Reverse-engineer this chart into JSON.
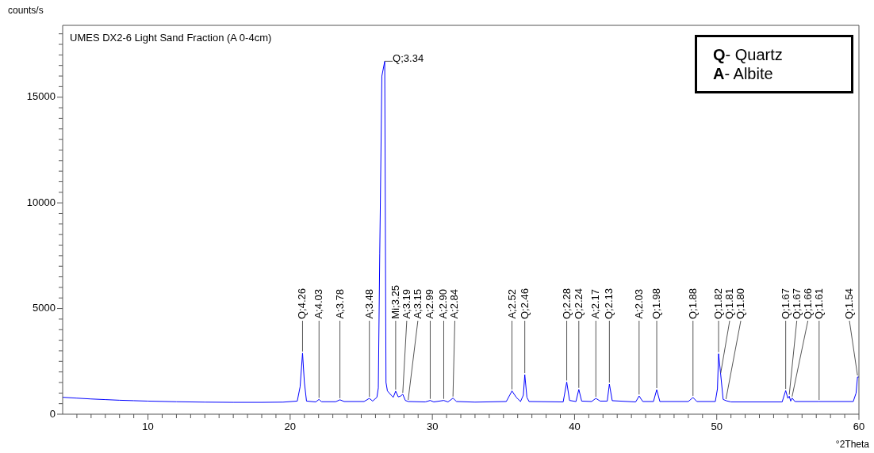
{
  "chart_data": {
    "type": "line",
    "title": "UMES DX2-6 Light Sand Fraction (A 0-4cm)",
    "xlabel": "°2Theta",
    "ylabel": "counts/s",
    "xlim": [
      4,
      60
    ],
    "xticks": [
      {
        "value": 5,
        "label": null
      },
      {
        "value": 6,
        "label": null
      },
      {
        "value": 7,
        "label": null
      },
      {
        "value": 8,
        "label": null
      },
      {
        "value": 9,
        "label": null
      },
      10,
      {
        "value": 11,
        "label": null
      },
      {
        "value": 12,
        "label": null
      },
      {
        "value": 13,
        "label": null
      },
      {
        "value": 14,
        "label": null
      },
      {
        "value": 15,
        "label": null
      },
      {
        "value": 16,
        "label": null
      },
      {
        "value": 17,
        "label": null
      },
      {
        "value": 18,
        "label": null
      },
      {
        "value": 19,
        "label": null
      },
      20,
      {
        "value": 21,
        "label": null
      },
      {
        "value": 22,
        "label": null
      },
      {
        "value": 23,
        "label": null
      },
      {
        "value": 24,
        "label": null
      },
      {
        "value": 25,
        "label": null
      },
      {
        "value": 26,
        "label": null
      },
      {
        "value": 27,
        "label": null
      },
      {
        "value": 28,
        "label": null
      },
      {
        "value": 29,
        "label": null
      },
      30,
      {
        "value": 31,
        "label": null
      },
      {
        "value": 32,
        "label": null
      },
      {
        "value": 33,
        "label": null
      },
      {
        "value": 34,
        "label": null
      },
      {
        "value": 35,
        "label": null
      },
      {
        "value": 36,
        "label": null
      },
      {
        "value": 37,
        "label": null
      },
      {
        "value": 38,
        "label": null
      },
      {
        "value": 39,
        "label": null
      },
      40,
      {
        "value": 41,
        "label": null
      },
      {
        "value": 42,
        "label": null
      },
      {
        "value": 43,
        "label": null
      },
      {
        "value": 44,
        "label": null
      },
      {
        "value": 45,
        "label": null
      },
      {
        "value": 46,
        "label": null
      },
      {
        "value": 47,
        "label": null
      },
      {
        "value": 48,
        "label": null
      },
      {
        "value": 49,
        "label": null
      },
      50,
      {
        "value": 51,
        "label": null
      },
      {
        "value": 52,
        "label": null
      },
      {
        "value": 53,
        "label": null
      },
      {
        "value": 54,
        "label": null
      },
      {
        "value": 55,
        "label": null
      },
      {
        "value": 56,
        "label": null
      },
      {
        "value": 57,
        "label": null
      },
      {
        "value": 58,
        "label": null
      },
      {
        "value": 59,
        "label": null
      },
      60
    ],
    "ylim": [
      0,
      18400
    ],
    "yticks": [
      0,
      {
        "value": 500,
        "label": null
      },
      {
        "value": 1000,
        "label": null
      },
      {
        "value": 1500,
        "label": null
      },
      {
        "value": 2000,
        "label": null
      },
      {
        "value": 2500,
        "label": null
      },
      {
        "value": 3000,
        "label": null
      },
      {
        "value": 3500,
        "label": null
      },
      {
        "value": 4000,
        "label": null
      },
      {
        "value": 4500,
        "label": null
      },
      5000,
      {
        "value": 5500,
        "label": null
      },
      {
        "value": 6000,
        "label": null
      },
      {
        "value": 6500,
        "label": null
      },
      {
        "value": 7000,
        "label": null
      },
      {
        "value": 7500,
        "label": null
      },
      {
        "value": 8000,
        "label": null
      },
      {
        "value": 8500,
        "label": null
      },
      {
        "value": 9000,
        "label": null
      },
      {
        "value": 9500,
        "label": null
      },
      10000,
      {
        "value": 10500,
        "label": null
      },
      {
        "value": 11000,
        "label": null
      },
      {
        "value": 11500,
        "label": null
      },
      {
        "value": 12000,
        "label": null
      },
      {
        "value": 12500,
        "label": null
      },
      {
        "value": 13000,
        "label": null
      },
      {
        "value": 13500,
        "label": null
      },
      {
        "value": 14000,
        "label": null
      },
      {
        "value": 14500,
        "label": null
      },
      15000,
      {
        "value": 15500,
        "label": null
      },
      {
        "value": 16000,
        "label": null
      },
      {
        "value": 16500,
        "label": null
      },
      {
        "value": 17000,
        "label": null
      },
      {
        "value": 17500,
        "label": null
      },
      {
        "value": 18000,
        "label": null
      }
    ],
    "grid": false,
    "legend": false,
    "marker": "none",
    "line_style": "solid",
    "series": [
      {
        "color": "#0000ff",
        "x": [
          4,
          5,
          6,
          7,
          8,
          9,
          10,
          12,
          14,
          16,
          18,
          19.5,
          20.5,
          20.7,
          20.87,
          21.0,
          21.15,
          21.8,
          22.03,
          22.2,
          23.2,
          23.5,
          23.8,
          25.2,
          25.57,
          25.8,
          26.1,
          26.2,
          26.3,
          26.45,
          26.65,
          26.74,
          26.84,
          27.1,
          27.25,
          27.42,
          27.6,
          27.75,
          27.92,
          28.1,
          28.3,
          29.5,
          29.85,
          30.1,
          30.8,
          31.1,
          31.45,
          31.7,
          33,
          35.2,
          35.6,
          35.9,
          36.2,
          36.4,
          36.5,
          36.65,
          36.8,
          39.2,
          39.45,
          39.65,
          40.1,
          40.3,
          40.5,
          41.2,
          41.5,
          41.8,
          42.3,
          42.45,
          42.65,
          44.3,
          44.54,
          44.8,
          45.55,
          45.78,
          46,
          48,
          48.33,
          48.6,
          49.9,
          50.05,
          50.13,
          50.28,
          50.45,
          50.65,
          51,
          54.6,
          54.85,
          55.0,
          55.1,
          55.2,
          55.3,
          55.5,
          57.2,
          59.6,
          59.8,
          59.9,
          60
        ],
        "values": [
          800,
          760,
          720,
          690,
          660,
          640,
          620,
          590,
          570,
          560,
          560,
          570,
          620,
          1300,
          2890,
          1500,
          620,
          580,
          700,
          590,
          590,
          680,
          600,
          600,
          750,
          620,
          800,
          1240,
          7600,
          16000,
          16700,
          1500,
          1100,
          900,
          800,
          1090,
          820,
          850,
          940,
          650,
          600,
          580,
          650,
          580,
          650,
          580,
          760,
          600,
          570,
          600,
          1100,
          800,
          600,
          900,
          1870,
          800,
          600,
          580,
          1520,
          650,
          600,
          1170,
          620,
          600,
          750,
          620,
          620,
          1420,
          640,
          580,
          860,
          600,
          600,
          1160,
          600,
          600,
          790,
          600,
          600,
          1200,
          2860,
          1870,
          700,
          640,
          580,
          580,
          1120,
          750,
          850,
          620,
          760,
          600,
          600,
          600,
          1000,
          1760,
          1760
        ]
      }
    ],
    "annotations": [
      {
        "text": "Q;4.26",
        "x": 20.87,
        "y": 2890
      },
      {
        "text": "A;4.03",
        "x": 22.03,
        "y": 700
      },
      {
        "text": "A;3.78",
        "x": 23.5,
        "y": 680
      },
      {
        "text": "A;3.48",
        "x": 25.57,
        "y": 750
      },
      {
        "text": "Q;3.34",
        "x": 26.65,
        "y": 16700
      },
      {
        "text": "Mi;3.25",
        "x": 27.42,
        "y": 1090
      },
      {
        "text": "A;3.19",
        "x": 27.92,
        "y": 940
      },
      {
        "text": "A;3.15",
        "x": 28.3,
        "y": 600
      },
      {
        "text": "A;2.99",
        "x": 29.85,
        "y": 650
      },
      {
        "text": "A;2.90",
        "x": 30.8,
        "y": 650
      },
      {
        "text": "A;2.84",
        "x": 31.45,
        "y": 760
      },
      {
        "text": "A;2.52",
        "x": 35.6,
        "y": 1100
      },
      {
        "text": "Q;2.46",
        "x": 36.5,
        "y": 1870
      },
      {
        "text": "Q;2.28",
        "x": 39.45,
        "y": 1520
      },
      {
        "text": "Q;2.24",
        "x": 40.3,
        "y": 1170
      },
      {
        "text": "A;2.17",
        "x": 41.5,
        "y": 750
      },
      {
        "text": "Q;2.13",
        "x": 42.45,
        "y": 1420
      },
      {
        "text": "A;2.03",
        "x": 44.54,
        "y": 860
      },
      {
        "text": "Q;1.98",
        "x": 45.78,
        "y": 1160
      },
      {
        "text": "Q;1.88",
        "x": 48.33,
        "y": 790
      },
      {
        "text": "Q;1.82",
        "x": 50.13,
        "y": 2860
      },
      {
        "text": "Q;1.81",
        "x": 50.28,
        "y": 1870
      },
      {
        "text": "Q;1.80",
        "x": 50.65,
        "y": 640
      },
      {
        "text": "Q;1.67",
        "x": 54.85,
        "y": 1120
      },
      {
        "text": "Q;1.67",
        "x": 55.1,
        "y": 850
      },
      {
        "text": "Q;1.66",
        "x": 55.3,
        "y": 760
      },
      {
        "text": "Q;1.61",
        "x": 57.2,
        "y": 600
      },
      {
        "text": "Q;1.54",
        "x": 59.9,
        "y": 1760
      },
      "Q- Quartz",
      "A- Albite"
    ]
  }
}
